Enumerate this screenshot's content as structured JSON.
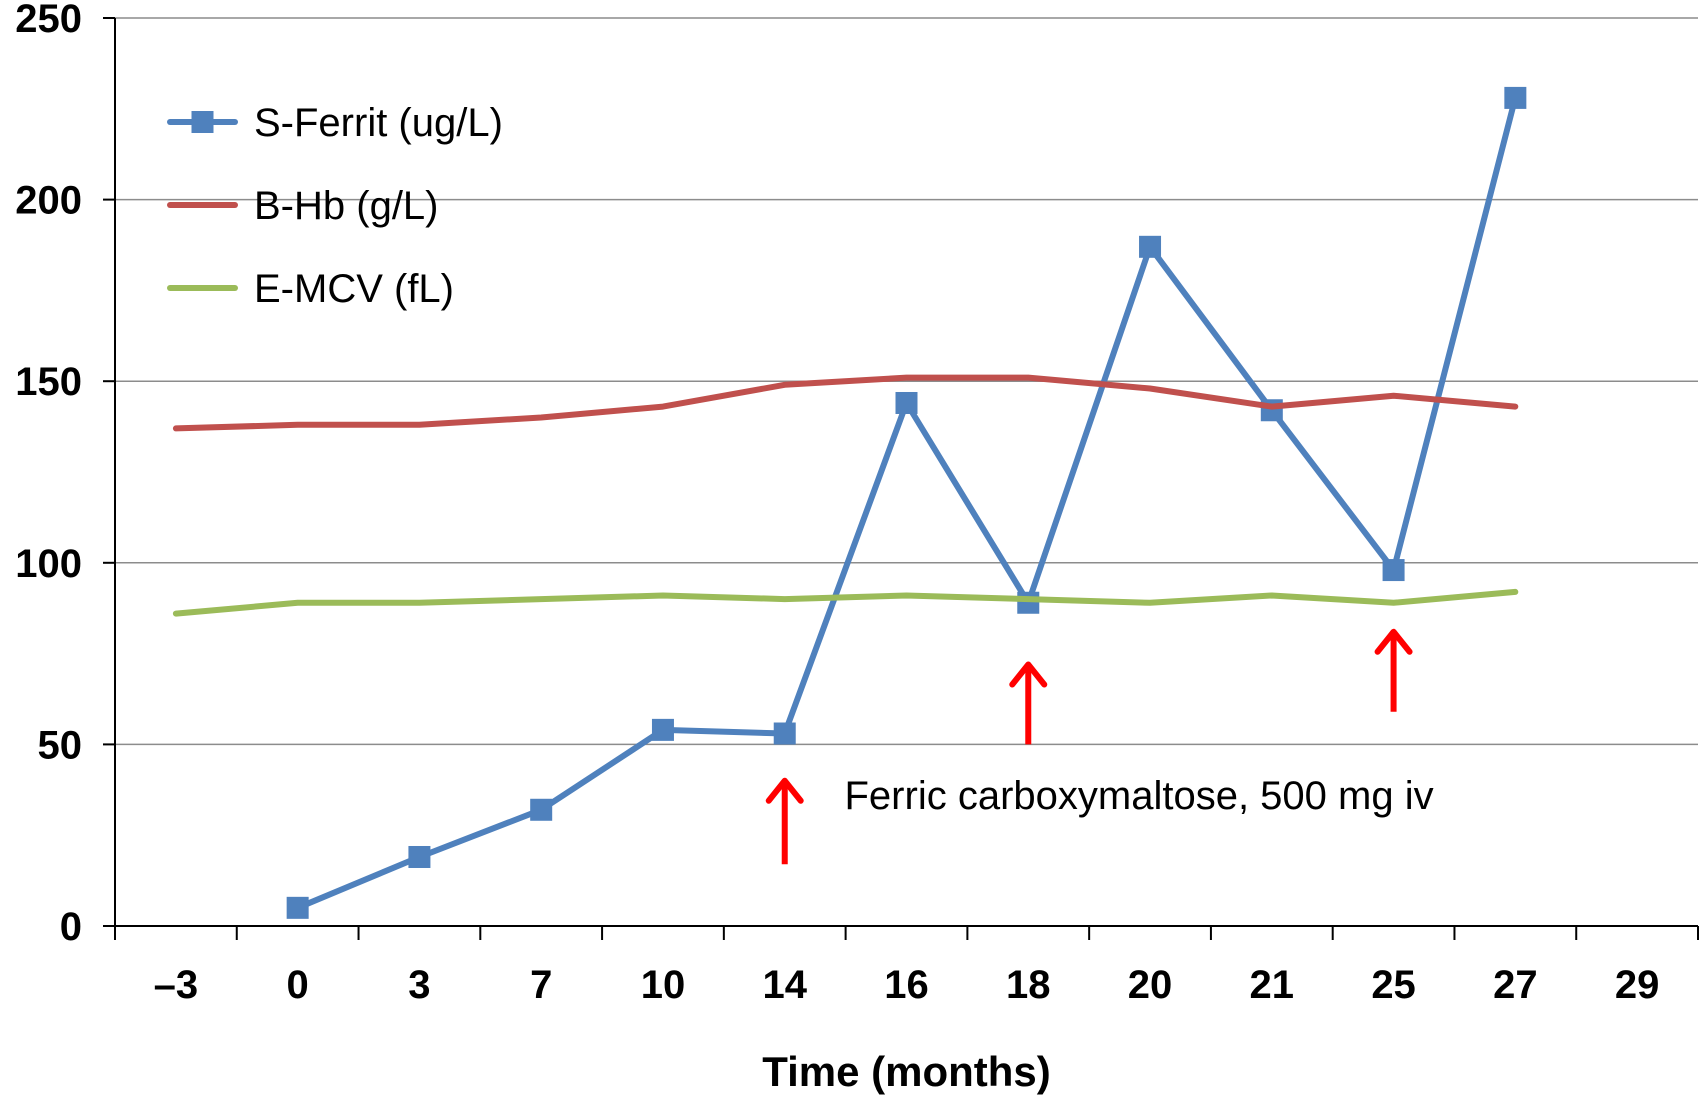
{
  "chart_data": {
    "type": "line",
    "title": "",
    "xlabel": "Time (months)",
    "ylabel": "",
    "ylim": [
      0,
      250
    ],
    "yticks": [
      "0",
      "50",
      "100",
      "150",
      "200",
      "250"
    ],
    "categories": [
      "–3",
      "0",
      "3",
      "7",
      "10",
      "14",
      "16",
      "18",
      "20",
      "21",
      "25",
      "27",
      "29"
    ],
    "grid": "horizontal",
    "legend_position": "top-left",
    "series": [
      {
        "name": "S-Ferrit (ug/L)",
        "color": "#4F81BD",
        "marker": "square",
        "values": [
          null,
          5,
          19,
          32,
          54,
          53,
          144,
          89,
          187,
          142,
          98,
          228,
          null
        ]
      },
      {
        "name": "B-Hb (g/L)",
        "color": "#C0504D",
        "marker": "none",
        "values": [
          137,
          138,
          138,
          140,
          143,
          149,
          151,
          151,
          148,
          143,
          146,
          143,
          null
        ]
      },
      {
        "name": "E-MCV (fL)",
        "color": "#9BBB59",
        "marker": "none",
        "values": [
          86,
          89,
          89,
          90,
          91,
          90,
          91,
          90,
          89,
          91,
          89,
          92,
          null
        ]
      }
    ],
    "arrows": [
      {
        "category": "14",
        "from": 17,
        "to": 40,
        "color": "#FF0000"
      },
      {
        "category": "18",
        "from": 50,
        "to": 72,
        "color": "#FF0000"
      },
      {
        "category": "25",
        "from": 59,
        "to": 81,
        "color": "#FF0000"
      }
    ],
    "annotation": {
      "text": "Ferric carboxymaltose, 500 mg iv",
      "category": "16",
      "y": 36
    }
  }
}
